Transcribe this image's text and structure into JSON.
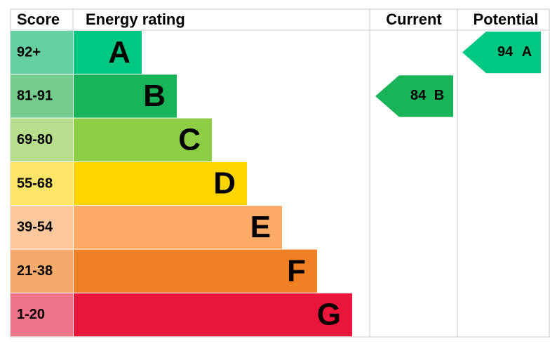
{
  "header": {
    "score": "Score",
    "rating": "Energy rating",
    "current": "Current",
    "potential": "Potential"
  },
  "bands": [
    {
      "score": "92+",
      "letter": "A",
      "color": "#00c781",
      "light": "#66cfa2"
    },
    {
      "score": "81-91",
      "letter": "B",
      "color": "#19b459",
      "light": "#76cc8e"
    },
    {
      "score": "69-80",
      "letter": "C",
      "color": "#8dce46",
      "light": "#b6de8c"
    },
    {
      "score": "55-68",
      "letter": "D",
      "color": "#ffd500",
      "light": "#ffe46a"
    },
    {
      "score": "39-54",
      "letter": "E",
      "color": "#fcaa65",
      "light": "#fdc89d"
    },
    {
      "score": "21-38",
      "letter": "F",
      "color": "#ef8023",
      "light": "#f4aa6c"
    },
    {
      "score": "1-20",
      "letter": "G",
      "color": "#e9153b",
      "light": "#f07489"
    }
  ],
  "current": {
    "score": 84,
    "letter": "B"
  },
  "potential": {
    "score": 94,
    "letter": "A"
  }
}
